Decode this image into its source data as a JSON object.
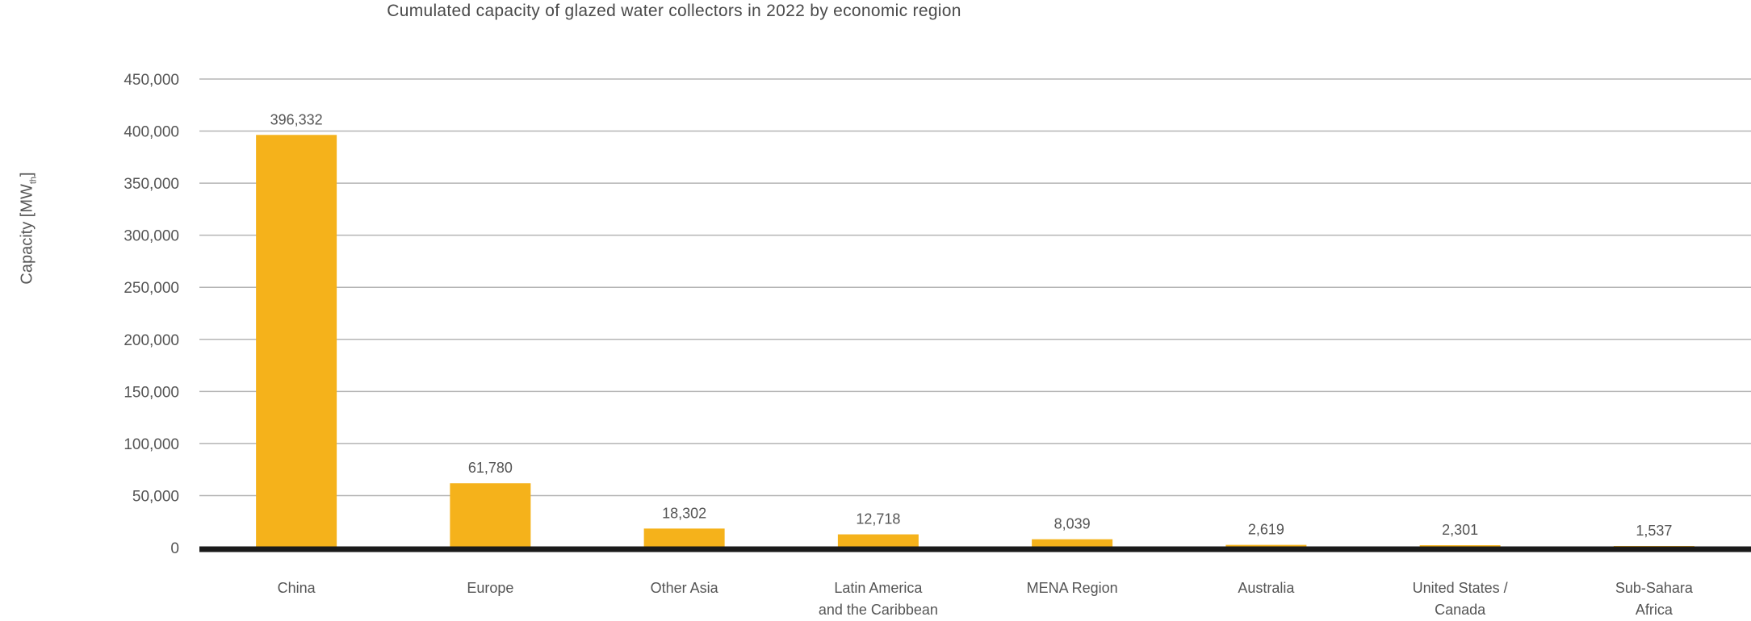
{
  "chart_data": {
    "type": "bar",
    "title": "Cumulated capacity of glazed water collectors in 2022 by economic region",
    "xlabel": "",
    "ylabel": "Capacity [MW",
    "ylabel_subscript": "th",
    "ylabel_suffix": "]",
    "ylim": [
      0,
      450000
    ],
    "yticks": [
      0,
      50000,
      100000,
      150000,
      200000,
      250000,
      300000,
      350000,
      400000,
      450000
    ],
    "ytick_labels": [
      "0",
      "50,000",
      "100,000",
      "150,000",
      "200,000",
      "250,000",
      "300,000",
      "350,000",
      "400,000",
      "450,000"
    ],
    "grid": true,
    "categories": [
      [
        "China"
      ],
      [
        "Europe"
      ],
      [
        "Other Asia"
      ],
      [
        "Latin America",
        "and the Caribbean"
      ],
      [
        "MENA Region"
      ],
      [
        "Australia"
      ],
      [
        "United States /",
        "Canada"
      ],
      [
        "Sub-Sahara",
        "Africa"
      ]
    ],
    "values": [
      396332,
      61780,
      18302,
      12718,
      8039,
      2619,
      2301,
      1537
    ],
    "value_labels": [
      "396,332",
      "61,780",
      "18,302",
      "12,718",
      "8,039",
      "2,619",
      "2,301",
      "1,537"
    ],
    "bar_color": "#F5B21B",
    "axis_color": "#1a1a1a",
    "grid_color": "#b5b5b5"
  }
}
